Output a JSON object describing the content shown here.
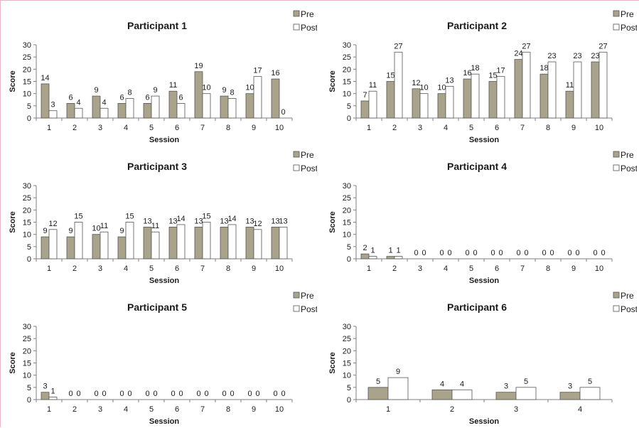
{
  "colors": {
    "pre": "#a8a38a",
    "post": "#ffffff",
    "stroke": "#555555",
    "axis": "#7f7f7f",
    "text": "#1a1a1a"
  },
  "chart_data": [
    {
      "type": "bar",
      "title": "Participant 1",
      "xlabel": "Session",
      "ylabel": "Score",
      "ylim": [
        0,
        30
      ],
      "yticks": [
        0,
        5,
        10,
        15,
        20,
        25,
        30
      ],
      "categories": [
        "1",
        "2",
        "3",
        "4",
        "5",
        "6",
        "7",
        "8",
        "9",
        "10"
      ],
      "legend_position": "top-right",
      "grid": false,
      "series": [
        {
          "name": "Pre",
          "values": [
            14,
            6,
            9,
            6,
            6,
            11,
            19,
            9,
            10,
            16
          ]
        },
        {
          "name": "Post",
          "values": [
            3,
            4,
            4,
            8,
            9,
            6,
            10,
            8,
            17,
            0
          ]
        }
      ]
    },
    {
      "type": "bar",
      "title": "Participant 2",
      "xlabel": "Session",
      "ylabel": "Score",
      "ylim": [
        0,
        30
      ],
      "yticks": [
        0,
        5,
        10,
        15,
        20,
        25,
        30
      ],
      "categories": [
        "1",
        "2",
        "3",
        "4",
        "5",
        "6",
        "7",
        "8",
        "9",
        "10"
      ],
      "legend_position": "top-right",
      "grid": false,
      "series": [
        {
          "name": "Pre",
          "values": [
            7,
            15,
            12,
            10,
            16,
            15,
            24,
            18,
            11,
            23
          ]
        },
        {
          "name": "Post",
          "values": [
            11,
            27,
            10,
            13,
            18,
            17,
            27,
            23,
            23,
            27
          ]
        }
      ]
    },
    {
      "type": "bar",
      "title": "Participant 3",
      "xlabel": "Session",
      "ylabel": "Score",
      "ylim": [
        0,
        30
      ],
      "yticks": [
        0,
        5,
        10,
        15,
        20,
        25,
        30
      ],
      "categories": [
        "1",
        "2",
        "3",
        "4",
        "5",
        "6",
        "7",
        "8",
        "9",
        "10"
      ],
      "legend_position": "top-right",
      "grid": false,
      "series": [
        {
          "name": "Pre",
          "values": [
            9,
            9,
            10,
            9,
            13,
            13,
            13,
            13,
            13,
            13
          ]
        },
        {
          "name": "Post",
          "values": [
            12,
            15,
            11,
            15,
            11,
            14,
            15,
            14,
            12,
            13
          ]
        }
      ]
    },
    {
      "type": "bar",
      "title": "Participant  4",
      "xlabel": "Session",
      "ylabel": "Score",
      "ylim": [
        0,
        30
      ],
      "yticks": [
        0,
        5,
        10,
        15,
        20,
        25,
        30
      ],
      "categories": [
        "1",
        "2",
        "3",
        "4",
        "5",
        "6",
        "7",
        "8",
        "9",
        "10"
      ],
      "legend_position": "top-right",
      "grid": false,
      "series": [
        {
          "name": "Pre",
          "values": [
            2,
            1,
            0,
            0,
            0,
            0,
            0,
            0,
            0,
            0
          ]
        },
        {
          "name": "Post",
          "values": [
            1,
            1,
            0,
            0,
            0,
            0,
            0,
            0,
            0,
            0
          ]
        }
      ]
    },
    {
      "type": "bar",
      "title": "Participant 5",
      "xlabel": "Session",
      "ylabel": "Score",
      "ylim": [
        0,
        30
      ],
      "yticks": [
        0,
        5,
        10,
        15,
        20,
        25,
        30
      ],
      "categories": [
        "1",
        "2",
        "3",
        "4",
        "5",
        "6",
        "7",
        "8",
        "9",
        "10"
      ],
      "legend_position": "top-right",
      "grid": false,
      "series": [
        {
          "name": "Pre",
          "values": [
            3,
            0,
            0,
            0,
            0,
            0,
            0,
            0,
            0,
            0
          ]
        },
        {
          "name": "Post",
          "values": [
            1,
            0,
            0,
            0,
            0,
            0,
            0,
            0,
            0,
            0
          ]
        }
      ]
    },
    {
      "type": "bar",
      "title": "Participant 6",
      "xlabel": "Session",
      "ylabel": "Score",
      "ylim": [
        0,
        30
      ],
      "yticks": [
        0,
        5,
        10,
        15,
        20,
        25,
        30
      ],
      "categories": [
        "1",
        "2",
        "3",
        "4"
      ],
      "legend_position": "top-right",
      "grid": false,
      "series": [
        {
          "name": "Pre",
          "values": [
            5,
            4,
            3,
            3
          ]
        },
        {
          "name": "Post",
          "values": [
            9,
            4,
            5,
            5
          ]
        }
      ]
    }
  ]
}
